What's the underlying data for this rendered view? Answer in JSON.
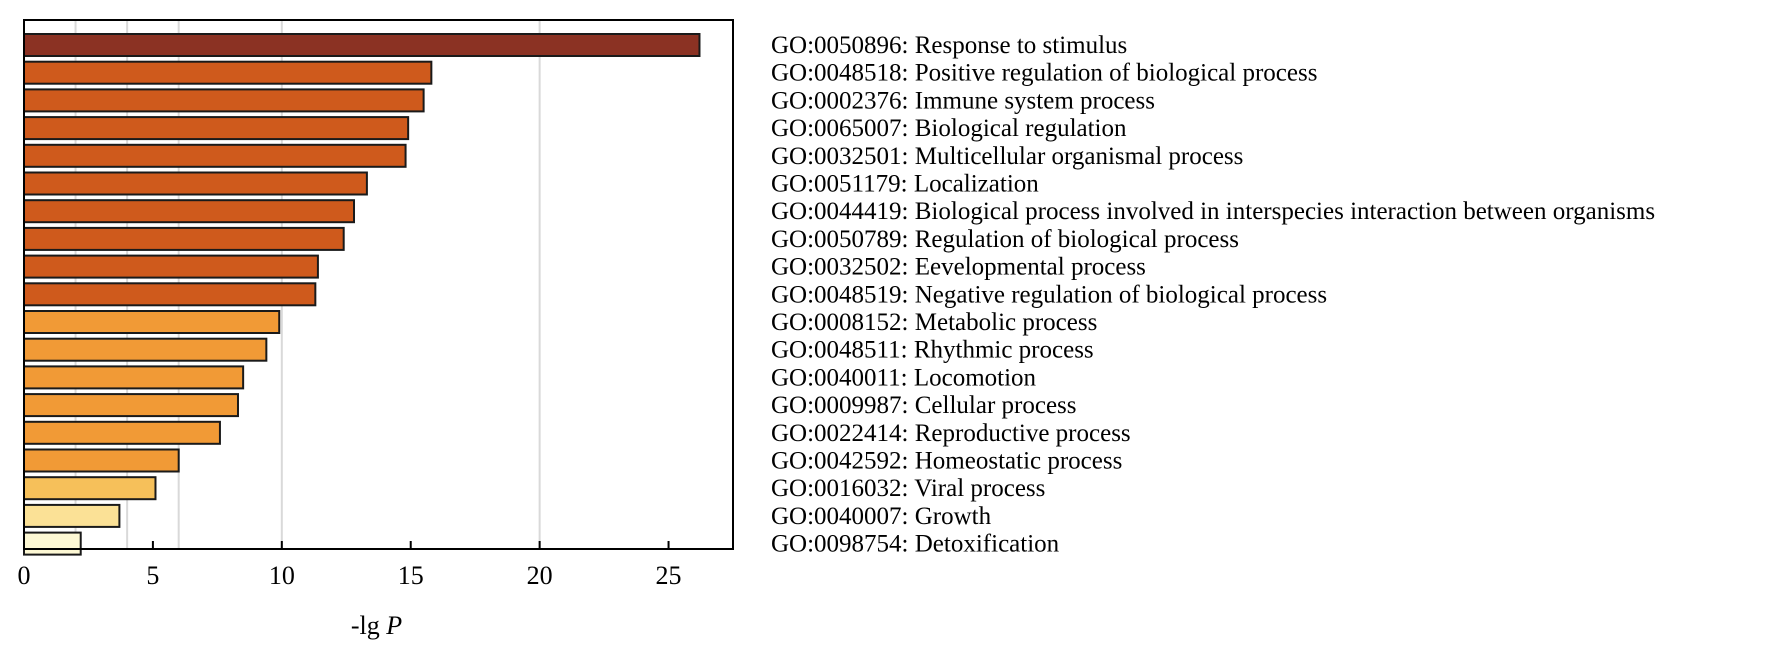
{
  "chart_data": {
    "type": "bar",
    "orientation": "horizontal",
    "xlabel": "-lg ",
    "xlabel_italic": "P",
    "xlim": [
      0,
      27.5
    ],
    "xticks": [
      0,
      5,
      10,
      15,
      20,
      25
    ],
    "grid": true,
    "gridlines": [
      2,
      4,
      6,
      10,
      20
    ],
    "categories": [
      "GO:0050896: Response to stimulus",
      "GO:0048518: Positive regulation of biological process",
      "GO:0002376: Immune system process",
      "GO:0065007: Biological regulation",
      "GO:0032501: Multicellular organismal process",
      "GO:0051179: Localization",
      "GO:0044419: Biological process involved in interspecies interaction between organisms",
      "GO:0050789: Regulation of biological process",
      "GO:0032502: Eevelopmental process",
      "GO:0048519: Negative regulation of biological process",
      "GO:0008152: Metabolic process",
      "GO:0048511: Rhythmic process",
      "GO:0040011: Locomotion",
      "GO:0009987: Cellular process",
      "GO:0022414: Reproductive process",
      "GO:0042592: Homeostatic process",
      "GO:0016032: Viral process",
      "GO:0040007: Growth",
      "GO:0098754: Detoxification"
    ],
    "values": [
      26.2,
      15.8,
      15.5,
      14.9,
      14.8,
      13.3,
      12.8,
      12.4,
      11.4,
      11.3,
      9.9,
      9.4,
      8.5,
      8.3,
      7.6,
      6.0,
      5.1,
      3.7,
      2.2
    ],
    "bar_colors": [
      "#8b3223",
      "#cf5a1c",
      "#cf5a1c",
      "#cf5a1c",
      "#cf5a1c",
      "#cf5a1c",
      "#cf5a1c",
      "#cf5a1c",
      "#cf5a1c",
      "#cf5a1c",
      "#f19a36",
      "#f19a36",
      "#f19a36",
      "#f19a36",
      "#f19a36",
      "#f19a36",
      "#f6c05a",
      "#fbe196",
      "#fdf8d4"
    ],
    "legend_placement": "right"
  }
}
